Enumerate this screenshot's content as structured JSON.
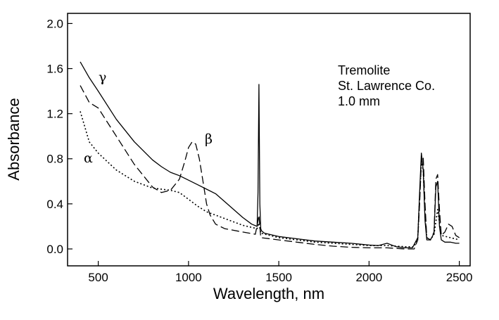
{
  "chart_data": {
    "type": "line",
    "title": "",
    "xlabel": "Wavelength, nm",
    "ylabel": "Absorbance",
    "xlim": [
      330,
      2560
    ],
    "ylim": [
      -0.15,
      2.09
    ],
    "xticks": [
      500,
      1000,
      1500,
      2000,
      2500
    ],
    "xtick_labels": [
      "500",
      "1000",
      "1500",
      "2000",
      "2500"
    ],
    "yticks": [
      0.0,
      0.4,
      0.8,
      1.2,
      1.6,
      2.0
    ],
    "ytick_labels": [
      "0.0",
      "0.4",
      "0.8",
      "1.2",
      "1.6",
      "2.0"
    ],
    "grid": false,
    "legend": "none",
    "annotation_lines": [
      "Tremolite",
      "St. Lawrence Co.",
      "1.0 mm"
    ],
    "series": [
      {
        "name": "γ",
        "style": "solid",
        "x": [
          400,
          450,
          500,
          600,
          700,
          800,
          850,
          900,
          950,
          1000,
          1050,
          1100,
          1150,
          1200,
          1250,
          1300,
          1350,
          1380,
          1385,
          1390,
          1395,
          1400,
          1405,
          1420,
          1500,
          1600,
          1700,
          1800,
          1900,
          2000,
          2050,
          2100,
          2150,
          2200,
          2240,
          2270,
          2280,
          2290,
          2300,
          2310,
          2320,
          2340,
          2360,
          2370,
          2380,
          2390,
          2400,
          2420,
          2450,
          2480,
          2500
        ],
        "y": [
          1.66,
          1.52,
          1.4,
          1.15,
          0.95,
          0.79,
          0.73,
          0.68,
          0.65,
          0.61,
          0.57,
          0.53,
          0.49,
          0.42,
          0.35,
          0.28,
          0.22,
          0.2,
          0.5,
          1.46,
          0.4,
          0.18,
          0.16,
          0.14,
          0.11,
          0.09,
          0.07,
          0.06,
          0.05,
          0.035,
          0.03,
          0.05,
          0.02,
          0.01,
          0.01,
          0.1,
          0.5,
          0.85,
          0.7,
          0.25,
          0.08,
          0.08,
          0.14,
          0.55,
          0.6,
          0.2,
          0.08,
          0.06,
          0.06,
          0.05,
          0.05
        ]
      },
      {
        "name": "β",
        "style": "dashed",
        "x": [
          400,
          450,
          500,
          600,
          700,
          800,
          850,
          900,
          950,
          980,
          1000,
          1020,
          1040,
          1060,
          1080,
          1100,
          1120,
          1150,
          1200,
          1300,
          1370,
          1385,
          1390,
          1395,
          1400,
          1500,
          1600,
          1700,
          1800,
          1900,
          2000,
          2100,
          2200,
          2250,
          2270,
          2280,
          2290,
          2300,
          2310,
          2320,
          2340,
          2360,
          2370,
          2380,
          2390,
          2400,
          2420,
          2440,
          2460,
          2480,
          2500
        ],
        "y": [
          1.45,
          1.3,
          1.25,
          1.0,
          0.75,
          0.55,
          0.5,
          0.52,
          0.62,
          0.78,
          0.9,
          0.95,
          0.93,
          0.8,
          0.6,
          0.4,
          0.3,
          0.22,
          0.18,
          0.15,
          0.13,
          0.25,
          0.3,
          0.2,
          0.1,
          0.08,
          0.06,
          0.04,
          0.025,
          0.015,
          0.01,
          0.01,
          0.0,
          0.0,
          0.08,
          0.4,
          0.78,
          0.82,
          0.4,
          0.1,
          0.08,
          0.15,
          0.62,
          0.66,
          0.35,
          0.12,
          0.15,
          0.22,
          0.2,
          0.12,
          0.1
        ]
      },
      {
        "name": "α",
        "style": "dotted",
        "x": [
          400,
          450,
          500,
          600,
          700,
          800,
          900,
          950,
          1000,
          1050,
          1100,
          1200,
          1300,
          1380,
          1390,
          1400,
          1500,
          1600,
          1700,
          1800,
          1900,
          2000,
          2100,
          2200,
          2250,
          2270,
          2280,
          2290,
          2300,
          2310,
          2320,
          2340,
          2360,
          2380,
          2400,
          2450,
          2500
        ],
        "y": [
          1.22,
          0.95,
          0.85,
          0.7,
          0.6,
          0.54,
          0.52,
          0.5,
          0.44,
          0.38,
          0.33,
          0.27,
          0.21,
          0.18,
          0.23,
          0.14,
          0.1,
          0.08,
          0.06,
          0.05,
          0.04,
          0.03,
          0.03,
          0.02,
          0.02,
          0.1,
          0.45,
          0.78,
          0.7,
          0.3,
          0.1,
          0.08,
          0.13,
          0.35,
          0.12,
          0.1,
          0.08
        ]
      }
    ]
  }
}
